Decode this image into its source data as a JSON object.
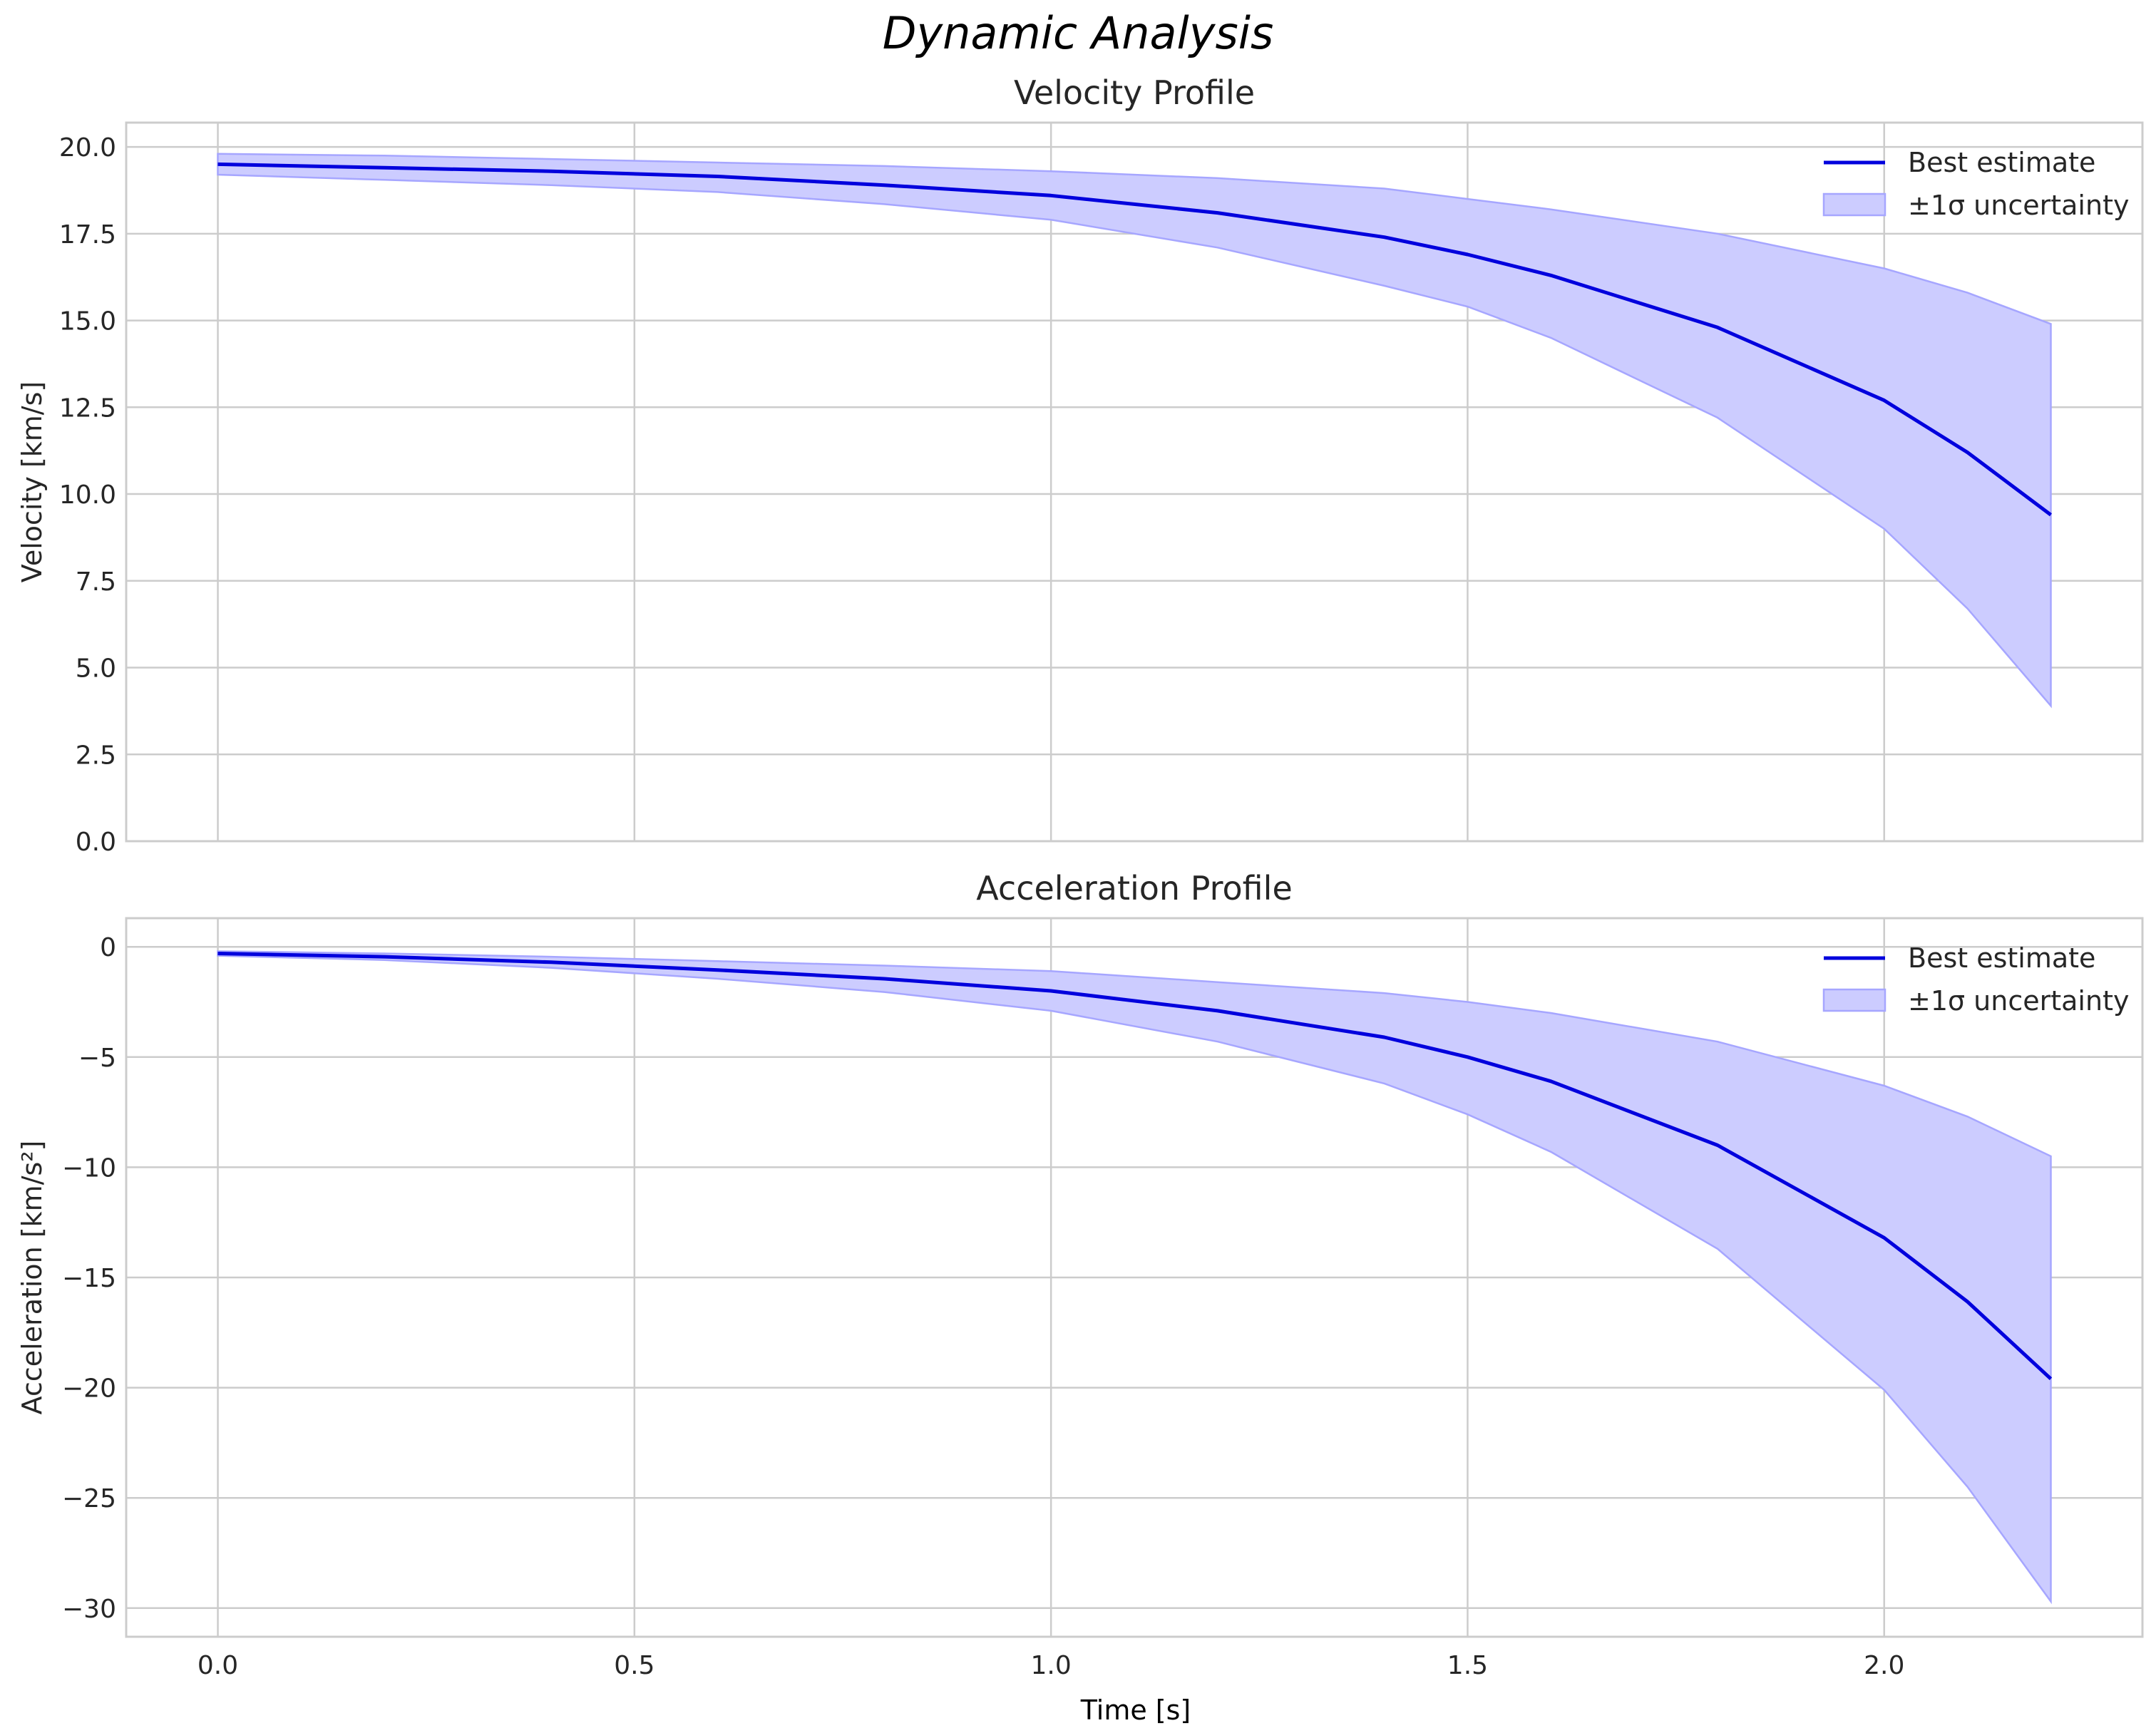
{
  "figure": {
    "suptitle": "Dynamic Analysis",
    "xlabel": "Time [s]",
    "xticks": [
      "0.0",
      "0.5",
      "1.0",
      "1.5",
      "2.0"
    ],
    "colors": {
      "line": "#0000dd",
      "fill": "#ccccff",
      "fill_edge": "#a6a6ff",
      "grid": "#cccccc",
      "spine": "#cccccc"
    }
  },
  "chart_data": [
    {
      "type": "line",
      "title": "Velocity Profile",
      "xlabel": "",
      "ylabel": "Velocity [km/s]",
      "xlim": [
        -0.11,
        2.31
      ],
      "ylim": [
        0,
        20.7
      ],
      "yticks": [
        "0.0",
        "2.5",
        "5.0",
        "7.5",
        "10.0",
        "12.5",
        "15.0",
        "17.5",
        "20.0"
      ],
      "grid": true,
      "legend": {
        "position": "upper right",
        "entries": [
          "Best estimate",
          "±1σ uncertainty"
        ]
      },
      "x": [
        0.0,
        0.2,
        0.4,
        0.6,
        0.8,
        1.0,
        1.2,
        1.4,
        1.5,
        1.6,
        1.8,
        2.0,
        2.1,
        2.2
      ],
      "series": [
        {
          "name": "Best estimate",
          "values": [
            19.5,
            19.4,
            19.3,
            19.15,
            18.9,
            18.6,
            18.1,
            17.4,
            16.9,
            16.3,
            14.8,
            12.7,
            11.2,
            9.4
          ]
        },
        {
          "name": "±1σ upper",
          "values": [
            19.8,
            19.75,
            19.65,
            19.55,
            19.45,
            19.3,
            19.1,
            18.8,
            18.5,
            18.2,
            17.5,
            16.5,
            15.8,
            14.9
          ]
        },
        {
          "name": "±1σ lower",
          "values": [
            19.2,
            19.05,
            18.9,
            18.7,
            18.35,
            17.9,
            17.1,
            16.0,
            15.4,
            14.5,
            12.2,
            9.0,
            6.7,
            3.9
          ]
        }
      ]
    },
    {
      "type": "line",
      "title": "Acceleration Profile",
      "xlabel": "Time [s]",
      "ylabel": "Acceleration [km/s²]",
      "xlim": [
        -0.11,
        2.31
      ],
      "ylim": [
        -31.3,
        1.3
      ],
      "yticks": [
        "0",
        "−5",
        "−10",
        "−15",
        "−20",
        "−25",
        "−30"
      ],
      "grid": true,
      "legend": {
        "position": "upper right",
        "entries": [
          "Best estimate",
          "±1σ uncertainty"
        ]
      },
      "x": [
        0.0,
        0.2,
        0.4,
        0.6,
        0.8,
        1.0,
        1.2,
        1.4,
        1.5,
        1.6,
        1.8,
        2.0,
        2.1,
        2.2
      ],
      "series": [
        {
          "name": "Best estimate",
          "values": [
            -0.3,
            -0.45,
            -0.7,
            -1.05,
            -1.45,
            -2.0,
            -2.9,
            -4.1,
            -5.0,
            -6.1,
            -9.0,
            -13.2,
            -16.1,
            -19.6
          ]
        },
        {
          "name": "±1σ upper",
          "values": [
            -0.2,
            -0.3,
            -0.45,
            -0.65,
            -0.85,
            -1.1,
            -1.6,
            -2.1,
            -2.5,
            -3.0,
            -4.3,
            -6.3,
            -7.7,
            -9.5
          ]
        },
        {
          "name": "±1σ lower",
          "values": [
            -0.4,
            -0.6,
            -0.95,
            -1.45,
            -2.05,
            -2.9,
            -4.3,
            -6.2,
            -7.6,
            -9.3,
            -13.7,
            -20.1,
            -24.5,
            -29.7
          ]
        }
      ]
    }
  ]
}
